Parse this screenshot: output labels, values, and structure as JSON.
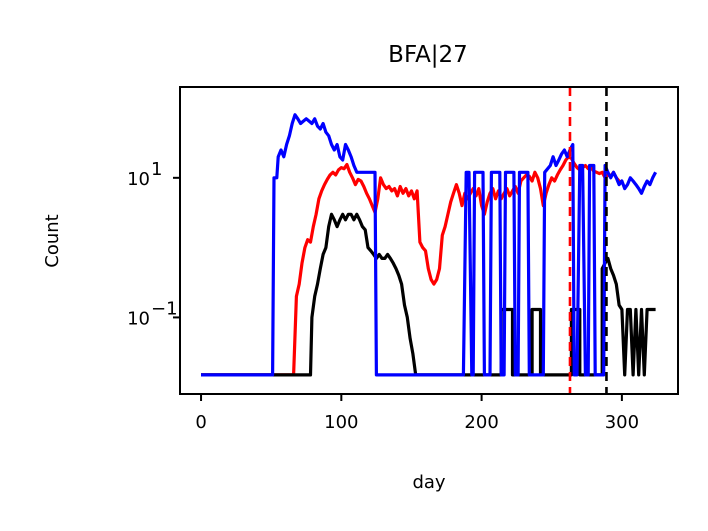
{
  "chart_data": {
    "type": "line",
    "title": "BFA|27",
    "xlabel": "day",
    "ylabel": "Count",
    "xlim": [
      -15,
      340
    ],
    "ylim": [
      0.008,
      200
    ],
    "yscale": "log",
    "grid": false,
    "x_ticks": [
      0,
      100,
      200,
      300
    ],
    "y_ticks": [
      {
        "value": 10,
        "base": "10",
        "exp": "1"
      },
      {
        "value": 0.1,
        "base": "10",
        "exp": "−1"
      }
    ],
    "vlines": [
      {
        "x": 263,
        "color": "#ff0000",
        "style": "dashed"
      },
      {
        "x": 289,
        "color": "#000000",
        "style": "dashed"
      }
    ],
    "series": [
      {
        "color": "#ff0000",
        "points": [
          [
            0,
            0.015
          ],
          [
            66,
            0.015
          ],
          [
            68,
            0.2
          ],
          [
            70,
            0.3
          ],
          [
            72,
            0.6
          ],
          [
            74,
            1.0
          ],
          [
            76,
            1.3
          ],
          [
            78,
            1.2
          ],
          [
            80,
            2.0
          ],
          [
            82,
            3.0
          ],
          [
            84,
            5.0
          ],
          [
            86,
            6.5
          ],
          [
            88,
            8.0
          ],
          [
            90,
            9.5
          ],
          [
            92,
            11.0
          ],
          [
            94,
            12.0
          ],
          [
            96,
            11.0
          ],
          [
            98,
            13.0
          ],
          [
            100,
            14.0
          ],
          [
            102,
            13.5
          ],
          [
            104,
            15.5
          ],
          [
            106,
            12.0
          ],
          [
            108,
            10.0
          ],
          [
            110,
            8.0
          ],
          [
            112,
            9.5
          ],
          [
            114,
            9.0
          ],
          [
            116,
            7.5
          ],
          [
            118,
            6.0
          ],
          [
            120,
            5.0
          ],
          [
            122,
            4.0
          ],
          [
            124,
            3.2
          ],
          [
            126,
            5.0
          ],
          [
            128,
            10.0
          ],
          [
            130,
            8.0
          ],
          [
            132,
            7.0
          ],
          [
            134,
            7.5
          ],
          [
            136,
            6.5
          ],
          [
            138,
            7.0
          ],
          [
            140,
            5.5
          ],
          [
            142,
            7.5
          ],
          [
            144,
            6.0
          ],
          [
            146,
            7.0
          ],
          [
            148,
            5.5
          ],
          [
            150,
            6.5
          ],
          [
            152,
            5.0
          ],
          [
            154,
            6.5
          ],
          [
            156,
            1.2
          ],
          [
            158,
            1.0
          ],
          [
            160,
            0.9
          ],
          [
            162,
            0.5
          ],
          [
            164,
            0.35
          ],
          [
            166,
            0.3
          ],
          [
            168,
            0.35
          ],
          [
            170,
            0.5
          ],
          [
            172,
            1.5
          ],
          [
            174,
            2.0
          ],
          [
            176,
            3.0
          ],
          [
            178,
            4.5
          ],
          [
            180,
            6.0
          ],
          [
            182,
            8.0
          ],
          [
            184,
            6.0
          ],
          [
            186,
            4.0
          ],
          [
            188,
            6.0
          ],
          [
            190,
            5.0
          ],
          [
            192,
            6.0
          ],
          [
            194,
            7.0
          ],
          [
            196,
            5.5
          ],
          [
            198,
            7.0
          ],
          [
            200,
            4.0
          ],
          [
            202,
            3.0
          ],
          [
            204,
            4.5
          ],
          [
            206,
            6.0
          ],
          [
            208,
            7.0
          ],
          [
            210,
            5.0
          ],
          [
            212,
            6.5
          ],
          [
            214,
            5.0
          ],
          [
            216,
            6.0
          ],
          [
            218,
            7.0
          ],
          [
            220,
            5.5
          ],
          [
            222,
            6.5
          ],
          [
            224,
            7.5
          ],
          [
            226,
            6.0
          ],
          [
            228,
            9.0
          ],
          [
            230,
            10.0
          ],
          [
            232,
            11.0
          ],
          [
            234,
            10.5
          ],
          [
            236,
            9.0
          ],
          [
            238,
            12.0
          ],
          [
            240,
            10.0
          ],
          [
            242,
            7.0
          ],
          [
            244,
            4.0
          ],
          [
            246,
            6.0
          ],
          [
            248,
            8.0
          ],
          [
            250,
            10.0
          ],
          [
            252,
            9.0
          ],
          [
            254,
            11.0
          ],
          [
            256,
            13.0
          ],
          [
            258,
            15.0
          ],
          [
            260,
            18.0
          ],
          [
            262,
            20.0
          ],
          [
            264,
            19.0
          ],
          [
            266,
            16.0
          ],
          [
            268,
            14.0
          ],
          [
            270,
            13.0
          ],
          [
            272,
            14.0
          ],
          [
            274,
            15.0
          ],
          [
            276,
            13.5
          ],
          [
            278,
            14.0
          ],
          [
            280,
            12.5
          ],
          [
            282,
            12.0
          ],
          [
            284,
            11.5
          ],
          [
            286,
            12.0
          ],
          [
            288,
            10.0
          ],
          [
            290,
            11.0
          ],
          [
            292,
            10.5
          ],
          [
            294,
            12.0
          ],
          [
            296,
            10.0
          ],
          [
            298,
            9.0
          ],
          [
            300,
            8.5
          ]
        ]
      },
      {
        "color": "#000000",
        "points": [
          [
            0,
            0.015
          ],
          [
            76,
            0.015
          ],
          [
            78,
            0.015
          ],
          [
            79,
            0.1
          ],
          [
            81,
            0.2
          ],
          [
            83,
            0.3
          ],
          [
            85,
            0.5
          ],
          [
            87,
            0.8
          ],
          [
            89,
            1.0
          ],
          [
            91,
            2.0
          ],
          [
            93,
            3.0
          ],
          [
            95,
            2.5
          ],
          [
            97,
            2.0
          ],
          [
            99,
            2.5
          ],
          [
            101,
            3.0
          ],
          [
            103,
            2.5
          ],
          [
            105,
            3.0
          ],
          [
            107,
            3.0
          ],
          [
            109,
            2.5
          ],
          [
            111,
            3.0
          ],
          [
            113,
            2.5
          ],
          [
            115,
            2.0
          ],
          [
            117,
            1.8
          ],
          [
            119,
            1.0
          ],
          [
            121,
            0.9
          ],
          [
            123,
            0.8
          ],
          [
            125,
            0.7
          ],
          [
            127,
            0.8
          ],
          [
            129,
            0.7
          ],
          [
            131,
            0.7
          ],
          [
            133,
            0.8
          ],
          [
            135,
            0.7
          ],
          [
            137,
            0.6
          ],
          [
            139,
            0.5
          ],
          [
            141,
            0.4
          ],
          [
            143,
            0.3
          ],
          [
            145,
            0.15
          ],
          [
            147,
            0.1
          ],
          [
            149,
            0.05
          ],
          [
            151,
            0.03
          ],
          [
            153,
            0.015
          ],
          [
            155,
            0.015
          ],
          [
            214,
            0.015
          ],
          [
            214,
            0.13
          ],
          [
            222,
            0.13
          ],
          [
            222,
            0.015
          ],
          [
            236,
            0.015
          ],
          [
            236,
            0.13
          ],
          [
            242,
            0.13
          ],
          [
            242,
            0.015
          ],
          [
            264,
            0.015
          ],
          [
            264,
            0.13
          ],
          [
            270,
            0.13
          ],
          [
            270,
            0.015
          ],
          [
            286,
            0.015
          ],
          [
            286,
            0.5
          ],
          [
            288,
            0.6
          ],
          [
            290,
            0.7
          ],
          [
            292,
            0.5
          ],
          [
            294,
            0.4
          ],
          [
            296,
            0.3
          ],
          [
            298,
            0.15
          ],
          [
            300,
            0.13
          ],
          [
            302,
            0.015
          ],
          [
            304,
            0.13
          ],
          [
            306,
            0.13
          ],
          [
            308,
            0.015
          ],
          [
            310,
            0.13
          ],
          [
            312,
            0.015
          ],
          [
            314,
            0.13
          ],
          [
            316,
            0.015
          ],
          [
            318,
            0.13
          ],
          [
            320,
            0.13
          ],
          [
            322,
            0.13
          ],
          [
            324,
            0.13
          ]
        ]
      },
      {
        "color": "#0000ff",
        "points": [
          [
            0,
            0.015
          ],
          [
            49,
            0.015
          ],
          [
            51,
            0.015
          ],
          [
            52,
            10.0
          ],
          [
            54,
            10.0
          ],
          [
            55,
            20.0
          ],
          [
            57,
            25.0
          ],
          [
            59,
            20.0
          ],
          [
            61,
            30.0
          ],
          [
            63,
            40.0
          ],
          [
            65,
            60.0
          ],
          [
            67,
            80.0
          ],
          [
            69,
            70.0
          ],
          [
            71,
            60.0
          ],
          [
            73,
            65.0
          ],
          [
            75,
            70.0
          ],
          [
            77,
            65.0
          ],
          [
            79,
            60.0
          ],
          [
            81,
            70.0
          ],
          [
            83,
            55.0
          ],
          [
            85,
            50.0
          ],
          [
            87,
            60.0
          ],
          [
            89,
            45.0
          ],
          [
            91,
            40.0
          ],
          [
            93,
            30.0
          ],
          [
            95,
            25.0
          ],
          [
            97,
            30.0
          ],
          [
            99,
            20.0
          ],
          [
            101,
            18.0
          ],
          [
            103,
            30.0
          ],
          [
            105,
            25.0
          ],
          [
            107,
            20.0
          ],
          [
            109,
            15.0
          ],
          [
            111,
            12.0
          ],
          [
            113,
            12.0
          ],
          [
            115,
            12.0
          ],
          [
            119,
            12.0
          ],
          [
            121,
            12.0
          ],
          [
            124,
            12.0
          ],
          [
            125,
            0.015
          ],
          [
            187,
            0.015
          ],
          [
            189,
            12.0
          ],
          [
            191,
            12.0
          ],
          [
            193,
            0.015
          ],
          [
            194,
            0.015
          ],
          [
            195,
            12.0
          ],
          [
            201,
            12.0
          ],
          [
            202,
            0.015
          ],
          [
            206,
            0.015
          ],
          [
            207,
            12.0
          ],
          [
            213,
            12.0
          ],
          [
            214,
            0.015
          ],
          [
            216,
            0.015
          ],
          [
            217,
            12.0
          ],
          [
            223,
            12.0
          ],
          [
            224,
            0.015
          ],
          [
            226,
            0.015
          ],
          [
            227,
            12.0
          ],
          [
            233,
            12.0
          ],
          [
            234,
            0.015
          ],
          [
            244,
            0.015
          ],
          [
            245,
            12.0
          ],
          [
            249,
            15.0
          ],
          [
            251,
            20.0
          ],
          [
            253,
            15.0
          ],
          [
            255,
            18.0
          ],
          [
            257,
            22.0
          ],
          [
            259,
            25.0
          ],
          [
            261,
            20.0
          ],
          [
            263,
            25.0
          ],
          [
            265,
            30.0
          ],
          [
            266,
            0.015
          ],
          [
            268,
            0.015
          ],
          [
            270,
            15.0
          ],
          [
            272,
            15.0
          ],
          [
            274,
            0.015
          ],
          [
            276,
            0.015
          ],
          [
            277,
            15.0
          ],
          [
            280,
            15.0
          ],
          [
            281,
            0.015
          ],
          [
            287,
            0.015
          ],
          [
            288,
            15.0
          ],
          [
            290,
            12.0
          ],
          [
            292,
            10.0
          ],
          [
            294,
            12.0
          ],
          [
            296,
            10.0
          ],
          [
            298,
            8.0
          ],
          [
            300,
            9.0
          ],
          [
            302,
            7.0
          ],
          [
            304,
            8.0
          ],
          [
            306,
            10.0
          ],
          [
            308,
            9.0
          ],
          [
            310,
            8.0
          ],
          [
            312,
            7.0
          ],
          [
            314,
            6.0
          ],
          [
            316,
            7.5
          ],
          [
            318,
            9.0
          ],
          [
            320,
            8.0
          ],
          [
            322,
            10.0
          ],
          [
            324,
            12.0
          ]
        ]
      }
    ]
  }
}
